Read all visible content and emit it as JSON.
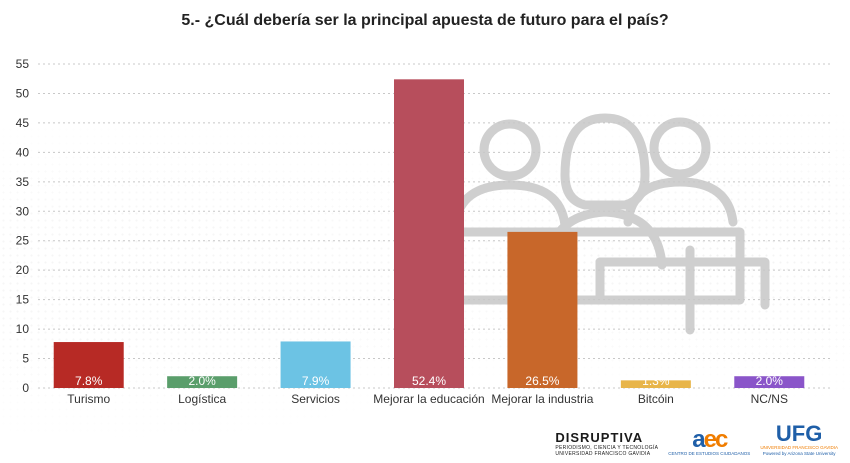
{
  "chart_data": {
    "type": "bar",
    "title": "5.- ¿Cuál debería ser la principal apuesta de futuro para el país?",
    "categories": [
      "Turismo",
      "Logística",
      "Servicios",
      "Mejorar la educación",
      "Mejorar la industria",
      "Bitcóin",
      "NC/NS"
    ],
    "values": [
      7.8,
      2.0,
      7.9,
      52.4,
      26.5,
      1.3,
      2.0
    ],
    "value_labels": [
      "7.8%",
      "2.0%",
      "7.9%",
      "52.4%",
      "26.5%",
      "1.3%",
      "2.0%"
    ],
    "colors": [
      "#b72a25",
      "#5a9e6b",
      "#6cc3e4",
      "#b74e5c",
      "#c8672a",
      "#e8b54a",
      "#8a55c9"
    ],
    "ylim": [
      0,
      55
    ],
    "yticks": [
      0,
      5,
      10,
      15,
      20,
      25,
      30,
      35,
      40,
      45,
      50,
      55
    ],
    "xlabel": "",
    "ylabel": "",
    "grid": true
  },
  "logos": {
    "disruptiva": {
      "name": "DISRUPTIVA",
      "sub1": "PERIODISMO, CIENCIA Y TECNOLOGÍA",
      "sub2": "UNIVERSIDAD FRANCISCO GAVIDIA"
    },
    "aec": {
      "mark_a": "a",
      "mark_ec": "ec",
      "sub": "CENTRO DE ESTUDIOS CIUDADANOS"
    },
    "ufg": {
      "mark": "UFG",
      "sub1": "UNIVERSIDAD FRANCISCO GAVIDIA",
      "sub2": "Powered by Arizona State University"
    }
  }
}
